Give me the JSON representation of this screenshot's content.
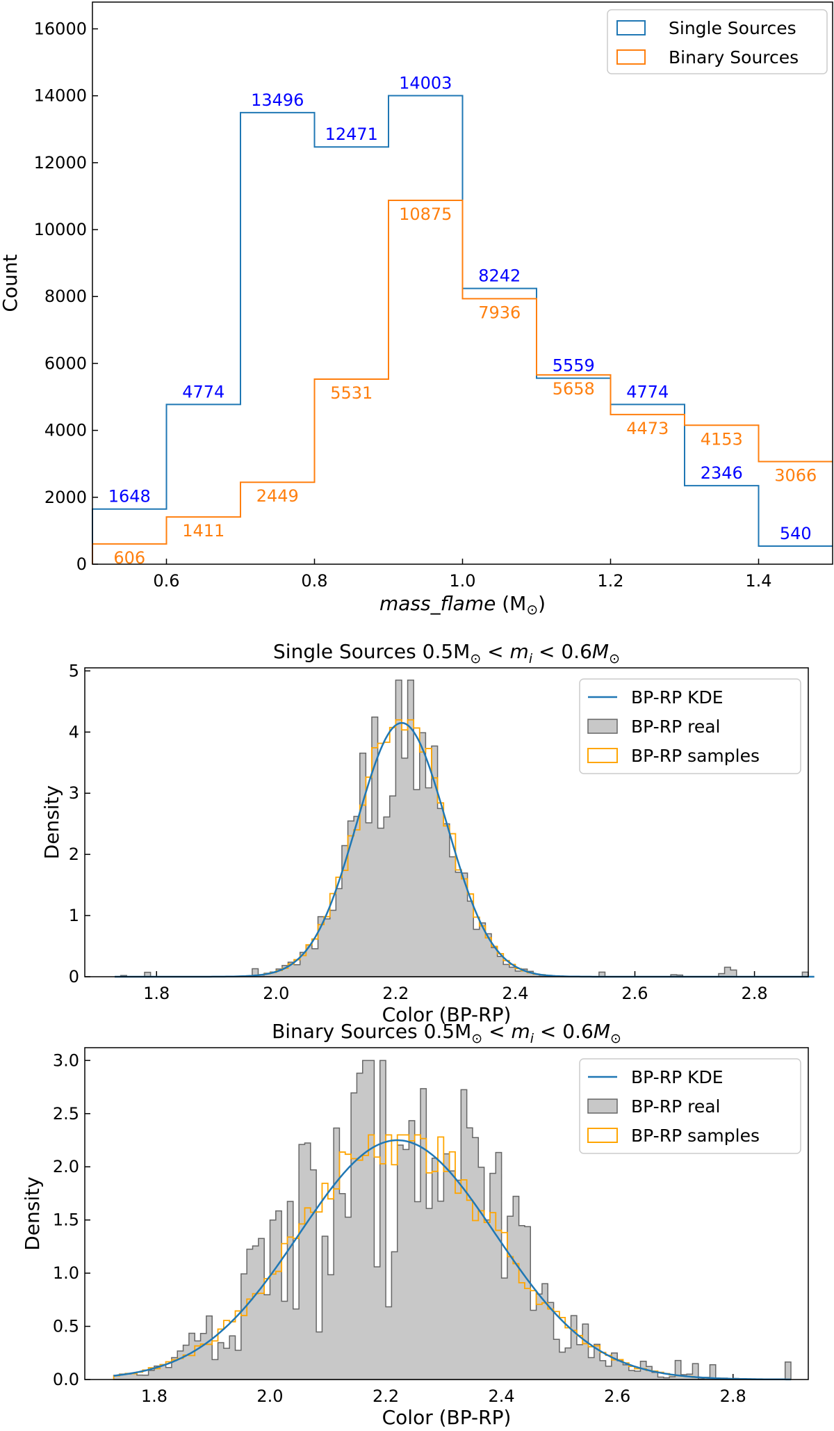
{
  "chart_data": [
    {
      "type": "step-histogram",
      "xlabel_main": "mass_flame",
      "xlabel_unit": "(M",
      "xlabel_close": ")",
      "ylabel": "Count",
      "xlim": [
        0.5,
        1.5
      ],
      "ylim": [
        0,
        16800
      ],
      "x_ticks": [
        0.6,
        0.8,
        1.0,
        1.2,
        1.4
      ],
      "x_tick_labels": [
        "0.6",
        "0.8",
        "1.0",
        "1.2",
        "1.4"
      ],
      "y_ticks": [
        0,
        2000,
        4000,
        6000,
        8000,
        10000,
        12000,
        14000,
        16000
      ],
      "y_tick_labels": [
        "0",
        "2000",
        "4000",
        "6000",
        "8000",
        "10000",
        "12000",
        "14000",
        "16000"
      ],
      "bin_edges": [
        0.5,
        0.6,
        0.7,
        0.8,
        0.9,
        1.0,
        1.1,
        1.2,
        1.3,
        1.4,
        1.5
      ],
      "series": [
        {
          "name": "Single Sources",
          "color": "#1f77b4",
          "label_color": "#0000ff",
          "values": [
            1648,
            4774,
            13496,
            12471,
            14003,
            8242,
            5559,
            4774,
            2346,
            540
          ],
          "labels": [
            "1648",
            "4774",
            "13496",
            "12471",
            "14003",
            "8242",
            "5559",
            "4774",
            "2346",
            "540"
          ]
        },
        {
          "name": "Binary Sources",
          "color": "#ff7f0e",
          "label_color": "#ff7f0e",
          "values": [
            606,
            1411,
            2449,
            5531,
            10875,
            7936,
            5658,
            4473,
            4153,
            3066
          ],
          "labels": [
            "606",
            "1411",
            "2449",
            "5531",
            "10875",
            "7936",
            "5658",
            "4473",
            "4153",
            "3066"
          ]
        }
      ],
      "legend": {
        "location": "upper right",
        "entries": [
          "Single Sources",
          "Binary Sources"
        ]
      }
    },
    {
      "type": "histogram-kde",
      "title": "Single Sources 0.5M",
      "xlabel": "Color (BP-RP)",
      "ylabel": "Density",
      "xlim": [
        1.68,
        2.89
      ],
      "ylim": [
        0,
        5.05
      ],
      "x_ticks": [
        1.8,
        2.0,
        2.2,
        2.4,
        2.6,
        2.8
      ],
      "x_tick_labels": [
        "1.8",
        "2.0",
        "2.2",
        "2.4",
        "2.6",
        "2.8"
      ],
      "y_ticks": [
        0,
        1,
        2,
        3,
        4,
        5
      ],
      "y_tick_labels": [
        "0",
        "1",
        "2",
        "3",
        "4",
        "5"
      ],
      "kde": {
        "name": "BP-RP KDE",
        "color": "#1f77b4",
        "mean": 2.21,
        "peak": 4.15,
        "sigma": 0.075
      },
      "real_hist": {
        "name": "BP-RP real",
        "fill": "#c8c8c8",
        "edge": "#666666",
        "peak": 4.85
      },
      "samples_hist": {
        "name": "BP-RP samples",
        "color": "#ffa500",
        "peak": 4.2
      },
      "legend": {
        "location": "upper right",
        "entries": [
          "BP-RP KDE",
          "BP-RP real",
          "BP-RP samples"
        ]
      }
    },
    {
      "type": "histogram-kde",
      "title": "Binary Sources 0.5M",
      "xlabel": "Color (BP-RP)",
      "ylabel": "Density",
      "xlim": [
        1.68,
        2.93
      ],
      "ylim": [
        0,
        3.12
      ],
      "x_ticks": [
        1.8,
        2.0,
        2.2,
        2.4,
        2.6,
        2.8
      ],
      "x_tick_labels": [
        "1.8",
        "2.0",
        "2.2",
        "2.4",
        "2.6",
        "2.8"
      ],
      "y_ticks": [
        0.0,
        0.5,
        1.0,
        1.5,
        2.0,
        2.5,
        3.0
      ],
      "y_tick_labels": [
        "0.0",
        "0.5",
        "1.0",
        "1.5",
        "2.0",
        "2.5",
        "3.0"
      ],
      "kde": {
        "name": "BP-RP KDE",
        "color": "#1f77b4",
        "mean": 2.22,
        "peak": 2.25,
        "sigma": 0.17
      },
      "real_hist": {
        "name": "BP-RP real",
        "fill": "#c8c8c8",
        "edge": "#666666",
        "peak": 3.0
      },
      "samples_hist": {
        "name": "BP-RP samples",
        "color": "#ffa500",
        "peak": 2.3
      },
      "legend": {
        "location": "upper right",
        "entries": [
          "BP-RP KDE",
          "BP-RP real",
          "BP-RP samples"
        ]
      }
    }
  ]
}
